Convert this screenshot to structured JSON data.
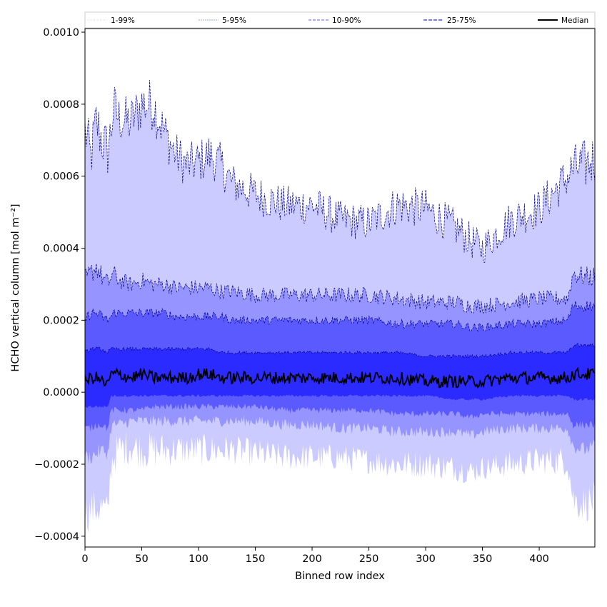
{
  "chart_data": {
    "type": "area",
    "xlabel": "Binned row index",
    "ylabel": "HCHO vertical column [mol m⁻²]",
    "xlim": [
      0,
      449
    ],
    "ylim": [
      -0.00043,
      0.00101
    ],
    "x_ticks": [
      0,
      50,
      100,
      150,
      200,
      250,
      300,
      350,
      400
    ],
    "x_tick_labels": [
      "0",
      "50",
      "100",
      "150",
      "200",
      "250",
      "300",
      "350",
      "400"
    ],
    "y_ticks": [
      -0.0004,
      -0.0002,
      0.0,
      0.0002,
      0.0004,
      0.0006,
      0.0008,
      0.001
    ],
    "y_tick_labels": [
      "−0.0004",
      "−0.0002",
      "0.0000",
      "0.0002",
      "0.0004",
      "0.0006",
      "0.0008",
      "0.0010"
    ],
    "legend_position": "top",
    "x_knots": [
      0,
      5,
      10,
      15,
      20,
      23,
      25,
      30,
      40,
      50,
      60,
      70,
      80,
      90,
      100,
      110,
      120,
      130,
      150,
      175,
      200,
      225,
      250,
      275,
      300,
      325,
      340,
      350,
      375,
      400,
      425,
      430,
      440,
      449
    ],
    "series": [
      {
        "name": "1-99%",
        "kind": "band",
        "color": "#cccbff",
        "upper": [
          0.00073,
          0.00065,
          0.00075,
          0.0007,
          0.00067,
          0.00073,
          0.00079,
          0.00076,
          0.00075,
          0.0008,
          0.0008,
          0.00072,
          0.00066,
          0.00063,
          0.00064,
          0.00066,
          0.00063,
          0.00058,
          0.00055,
          0.00052,
          0.00052,
          0.00048,
          0.00047,
          0.00052,
          0.00051,
          0.00046,
          0.00042,
          0.0004,
          0.00048,
          0.00051,
          0.0006,
          0.00062,
          0.00063,
          0.00065
        ],
        "lower": [
          -0.00034,
          -0.00033,
          -0.00032,
          -0.00032,
          -0.00034,
          -0.0002,
          -0.00018,
          -0.00016,
          -0.00015,
          -0.00016,
          -0.00016,
          -0.00016,
          -0.00016,
          -0.00016,
          -0.00016,
          -0.00016,
          -0.00016,
          -0.00016,
          -0.00017,
          -0.00018,
          -0.00018,
          -0.00018,
          -0.00019,
          -0.0002,
          -0.0002,
          -0.00021,
          -0.00022,
          -0.00021,
          -0.0002,
          -0.00019,
          -0.00019,
          -0.0003,
          -0.00031,
          -0.0003
        ]
      },
      {
        "name": "5-95%",
        "kind": "band",
        "color": "#9695ff",
        "upper": [
          0.00031,
          0.00033,
          0.00035,
          0.00032,
          0.0003,
          0.00032,
          0.00033,
          0.00031,
          0.0003,
          0.00031,
          0.0003,
          0.0003,
          0.00029,
          0.00029,
          0.00029,
          0.00029,
          0.00028,
          0.00028,
          0.00027,
          0.00027,
          0.00027,
          0.00027,
          0.00027,
          0.00026,
          0.00025,
          0.00025,
          0.00024,
          0.00024,
          0.00025,
          0.00026,
          0.00026,
          0.00033,
          0.00032,
          0.00032
        ],
        "lower": [
          -0.00018,
          -0.00018,
          -0.00017,
          -0.00016,
          -0.00017,
          -0.0001,
          -9e-05,
          -9e-05,
          -8e-05,
          -8e-05,
          -8e-05,
          -8e-05,
          -8e-05,
          -8e-05,
          -8e-05,
          -8e-05,
          -8e-05,
          -8e-05,
          -8e-05,
          -9e-05,
          -9e-05,
          -0.0001,
          -0.0001,
          -0.00011,
          -0.00011,
          -0.00011,
          -0.00012,
          -0.00011,
          -0.0001,
          -0.0001,
          -0.0001,
          -0.00015,
          -0.00016,
          -0.00015
        ]
      },
      {
        "name": "10-90%",
        "kind": "band",
        "color": "#5b5aff",
        "upper": [
          0.0002,
          0.00022,
          0.00022,
          0.00021,
          0.0002,
          0.00021,
          0.00022,
          0.00022,
          0.00022,
          0.00022,
          0.00022,
          0.00022,
          0.00021,
          0.00021,
          0.00021,
          0.00021,
          0.00021,
          0.0002,
          0.0002,
          0.0002,
          0.0002,
          0.0002,
          0.0002,
          0.00019,
          0.00019,
          0.00019,
          0.00018,
          0.00018,
          0.00019,
          0.00019,
          0.0002,
          0.00024,
          0.00024,
          0.00024
        ],
        "lower": [
          -0.0001,
          -0.0001,
          -9e-05,
          -9e-05,
          -0.0001,
          -5e-05,
          -5e-05,
          -5e-05,
          -5e-05,
          -5e-05,
          -4e-05,
          -4e-05,
          -4e-05,
          -4e-05,
          -4e-05,
          -4e-05,
          -4e-05,
          -4e-05,
          -4e-05,
          -5e-05,
          -5e-05,
          -5e-05,
          -5e-05,
          -6e-05,
          -6e-05,
          -6e-05,
          -7e-05,
          -6e-05,
          -6e-05,
          -6e-05,
          -6e-05,
          -9e-05,
          -9e-05,
          -9e-05
        ]
      },
      {
        "name": "25-75%",
        "kind": "band",
        "color": "#2b2aff",
        "upper": [
          0.00011,
          0.00012,
          0.00012,
          0.00012,
          0.00011,
          0.00012,
          0.00012,
          0.00012,
          0.00012,
          0.00012,
          0.00012,
          0.00012,
          0.00012,
          0.00012,
          0.00012,
          0.00012,
          0.00011,
          0.00011,
          0.00011,
          0.00011,
          0.00011,
          0.00011,
          0.00011,
          0.00011,
          0.0001,
          0.0001,
          0.0001,
          0.0001,
          0.00011,
          0.00011,
          0.00011,
          0.00013,
          0.00013,
          0.00013
        ],
        "lower": [
          -4e-05,
          -4e-05,
          -4e-05,
          -4e-05,
          -4e-05,
          -1e-05,
          -1e-05,
          -1e-05,
          -1e-05,
          -1e-05,
          -1e-05,
          -1e-05,
          -1e-05,
          -1e-05,
          -1e-05,
          -1e-05,
          -1e-05,
          -1e-05,
          -1e-05,
          -1e-05,
          -1e-05,
          -1e-05,
          -1e-05,
          -1e-05,
          -1e-05,
          -2e-05,
          -2e-05,
          -2e-05,
          -1e-05,
          -1e-05,
          -1e-05,
          -2e-05,
          -2e-05,
          -2e-05
        ]
      },
      {
        "name": "Median",
        "kind": "line",
        "color": "#000000",
        "values": [
          3e-05,
          4e-05,
          4e-05,
          3e-05,
          2e-05,
          5e-05,
          5e-05,
          5e-05,
          4e-05,
          5e-05,
          4e-05,
          4e-05,
          4e-05,
          4e-05,
          5e-05,
          5e-05,
          4e-05,
          4e-05,
          4e-05,
          4e-05,
          4e-05,
          4e-05,
          4e-05,
          4e-05,
          3e-05,
          3e-05,
          3e-05,
          3e-05,
          4e-05,
          4e-05,
          4e-05,
          5e-05,
          5e-05,
          5e-05
        ]
      }
    ]
  }
}
